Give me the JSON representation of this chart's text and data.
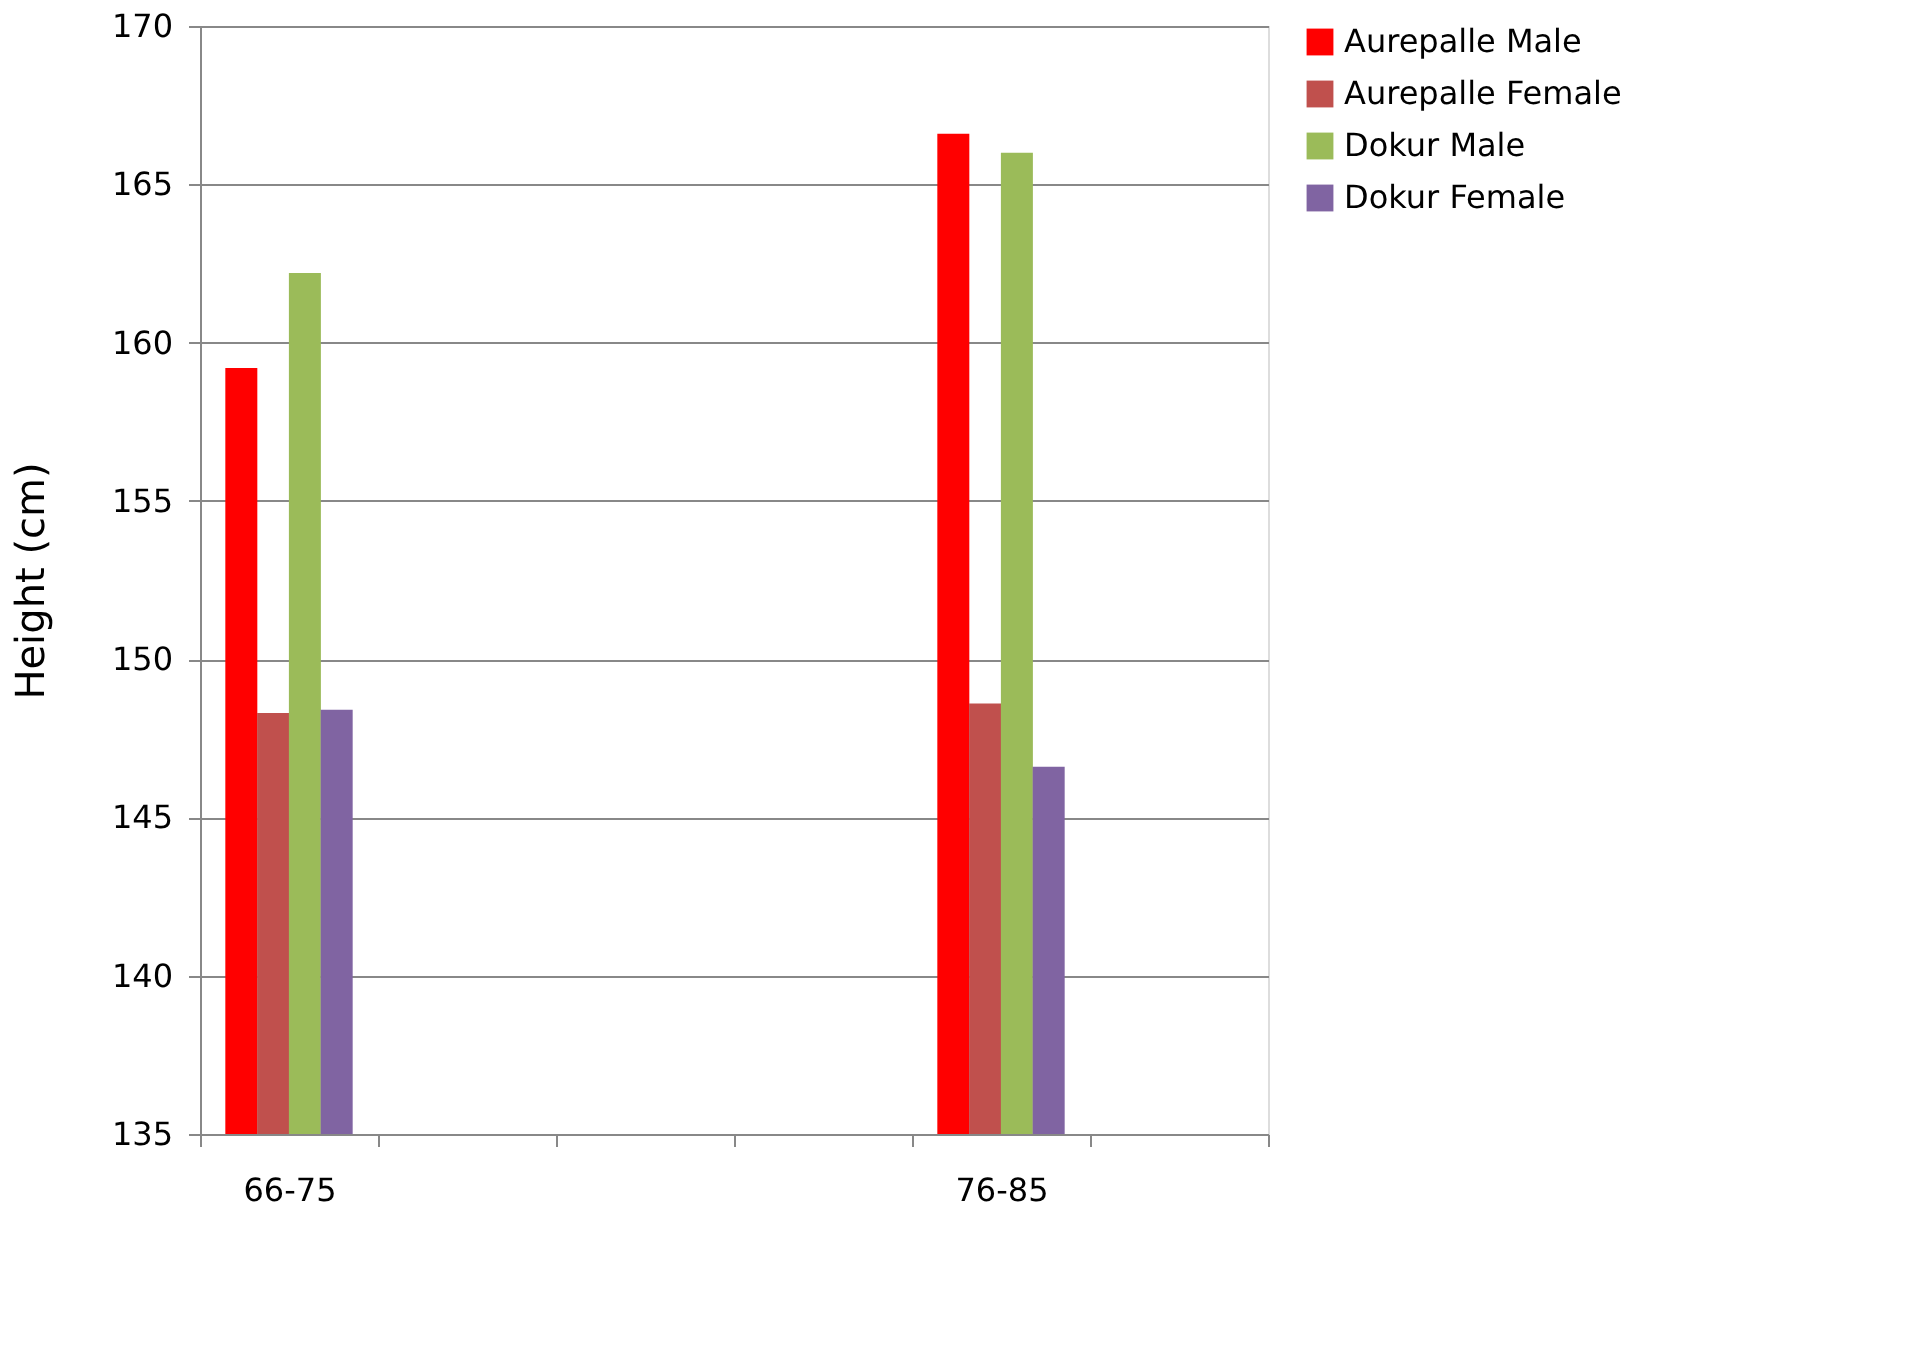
{
  "chart_data": {
    "type": "bar",
    "ylabel": "Height (cm)",
    "categories": [
      "66-75",
      null,
      null,
      null,
      "76-85",
      null
    ],
    "series": [
      {
        "name": "Aurepalle  Male",
        "color": "#ff0000",
        "values": [
          159.2,
          null,
          null,
          null,
          166.6,
          null
        ]
      },
      {
        "name": "Aurepalle  Female",
        "color": "#c0504d",
        "values": [
          148.3,
          null,
          null,
          null,
          148.6,
          null
        ]
      },
      {
        "name": "Dokur  Male",
        "color": "#9bbb59",
        "values": [
          162.2,
          null,
          null,
          null,
          166.0,
          null
        ]
      },
      {
        "name": "Dokur  Female",
        "color": "#8064a2",
        "values": [
          148.4,
          null,
          null,
          null,
          146.6,
          null
        ]
      }
    ],
    "ylim": [
      135,
      170
    ],
    "yticks": [
      135,
      140,
      145,
      150,
      155,
      160,
      165,
      170
    ],
    "grid": "y",
    "legend": "right"
  }
}
